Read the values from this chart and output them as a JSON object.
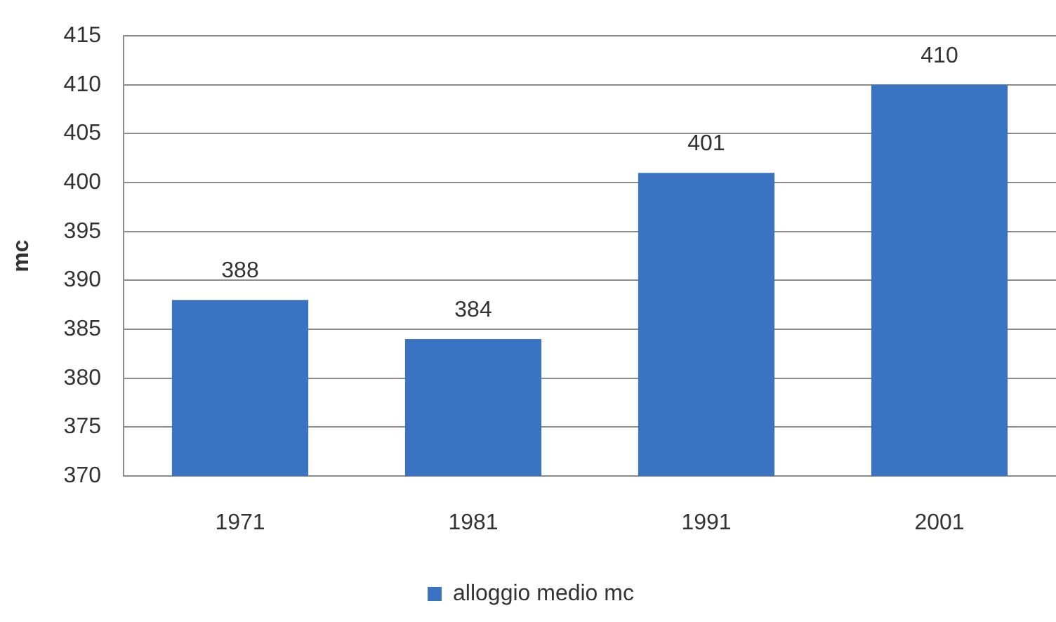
{
  "chart_data": {
    "type": "bar",
    "categories": [
      "1971",
      "1981",
      "1991",
      "2001"
    ],
    "series": [
      {
        "name": "alloggio medio mc",
        "color": "#3a73c2",
        "values": [
          388,
          384,
          401,
          410
        ]
      }
    ],
    "ylabel": "mc",
    "ylim": [
      370,
      415
    ],
    "yticks": [
      370,
      375,
      380,
      385,
      390,
      395,
      400,
      405,
      410,
      415
    ],
    "grid": "y",
    "legend": "bottom",
    "data_labels": true
  }
}
